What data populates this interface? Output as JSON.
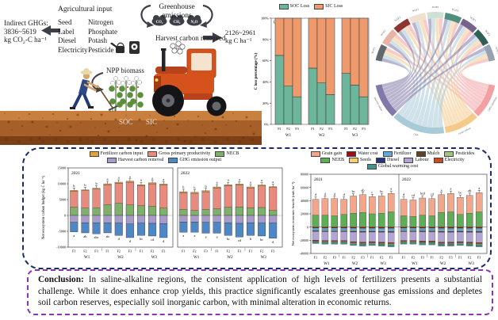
{
  "illustration": {
    "indirect_lines": [
      "Indirect GHGs:",
      "3836~5619",
      "kg CO₂-C ha⁻¹"
    ],
    "agricultural_input_title": "Agricultural input",
    "input_col1": [
      "Seed",
      "Label",
      "Diesel",
      "Electricity"
    ],
    "input_col2": [
      "Nitrogen",
      "Phosphate",
      "Potash",
      "Pesticide"
    ],
    "greenhouse_title": "Greenhouse emissions",
    "gas_badges": [
      "CO₂",
      "CH₄",
      "N₂O"
    ],
    "harvest_label": "Harvest carbon removed",
    "harvest_value_lines": [
      "2126~2961",
      "kg C ha⁻¹"
    ],
    "npp_label": "NPP biomass",
    "soil_labels": [
      "SOC",
      "SIC"
    ]
  },
  "chart_data": [
    {
      "id": "c-loss-stacked",
      "type": "bar",
      "stacked": true,
      "panel_label": "(a)",
      "ylabel": "C loss percentage (%)",
      "yticks": [
        "0%",
        "20%",
        "40%",
        "60%",
        "80%",
        "100%"
      ],
      "groups": [
        "W1",
        "W2",
        "W3"
      ],
      "categories": [
        "F1",
        "F2",
        "F3"
      ],
      "series": [
        {
          "name": "SOC Loss",
          "color": "#6db69b",
          "values": [
            65,
            36,
            26,
            53,
            39,
            28,
            48,
            37,
            26
          ]
        },
        {
          "name": "SIC Loss",
          "color": "#ef9a6d",
          "values": [
            35,
            64,
            74,
            47,
            61,
            72,
            52,
            63,
            74
          ]
        }
      ],
      "ylim": [
        0,
        100
      ]
    },
    {
      "id": "carbon-flow-chord",
      "type": "chord",
      "top_segments": [
        {
          "name": "W1F1",
          "color": "#63686e"
        },
        {
          "name": "W1F2",
          "color": "#e8b2a4"
        },
        {
          "name": "W1F3",
          "color": "#8f3430"
        },
        {
          "name": "W2F1",
          "color": "#f0e0cf"
        },
        {
          "name": "W2F2",
          "color": "#cfe0d6"
        },
        {
          "name": "W2F3",
          "color": "#4f8f7b"
        },
        {
          "name": "W3F1",
          "color": "#77628a"
        },
        {
          "name": "W3F2",
          "color": "#2f5f58"
        },
        {
          "name": "W3F3",
          "color": "#97a3ae"
        }
      ],
      "bottom_segments": [
        {
          "name": "Harvest carbon",
          "color": "#8379a8",
          "frac": 0.22
        },
        {
          "name": "GPP",
          "color": "#a9cbd8",
          "frac": 0.34
        },
        {
          "name": "Grain carbon",
          "color": "#f5c98a",
          "frac": 0.22
        },
        {
          "name": "GHG emissions",
          "color": "#f2a0a2",
          "frac": 0.22
        }
      ]
    },
    {
      "id": "necb-budget",
      "type": "bar",
      "ylabel": "Net ecosystem carbon budget (kg C ha⁻¹)",
      "yticks": [
        15000,
        10000,
        5000,
        0,
        -5000,
        -10000
      ],
      "ylim": [
        -10000,
        15000
      ],
      "groups": [
        "W1",
        "W2",
        "W3"
      ],
      "categories": [
        "F1",
        "F2",
        "F3"
      ],
      "legend": [
        {
          "label": "Fertilizer carbon input",
          "color": "#e0a43a"
        },
        {
          "label": "Gross primary productivity",
          "color": "#e88a7d"
        },
        {
          "label": "NECB",
          "color": "#7fb069"
        },
        {
          "label": "Harvest carbon removal",
          "color": "#a79cc9"
        },
        {
          "label": "GHG emission output",
          "color": "#4f86c6"
        }
      ],
      "fert_input": 300,
      "panels": [
        {
          "year": "2021",
          "gpp": [
            7600,
            7800,
            8300,
            9700,
            10200,
            10500,
            9400,
            10000,
            9600
          ],
          "necb": [
            2600,
            2300,
            2400,
            3400,
            3800,
            3300,
            3100,
            2900,
            2300
          ],
          "harvest": [
            -2200,
            -2300,
            -2300,
            -2300,
            -2400,
            -2700,
            -2400,
            -2500,
            -2600
          ],
          "ghg": [
            -5200,
            -5500,
            -5800,
            -5500,
            -6300,
            -7000,
            -6300,
            -6500,
            -7000
          ],
          "top_letters": [
            "b",
            "b",
            "b",
            "a",
            "a",
            "a",
            "a",
            "a",
            "a"
          ],
          "letters": [
            "a",
            "ab",
            "abc",
            "ab",
            "d",
            "d",
            "bc",
            "cd",
            "d"
          ]
        },
        {
          "year": "2022",
          "gpp": [
            7200,
            7000,
            7500,
            8700,
            9400,
            9600,
            8700,
            9300,
            8800
          ],
          "necb": [
            1900,
            1600,
            1900,
            2100,
            2600,
            2700,
            2400,
            2500,
            1600
          ],
          "harvest": [
            -2100,
            -2100,
            -2200,
            -2200,
            -2300,
            -2500,
            -2300,
            -2400,
            -2400
          ],
          "ghg": [
            -5300,
            -5300,
            -5600,
            -5600,
            -6300,
            -6800,
            -6300,
            -6500,
            -7200
          ],
          "top_letters": [
            "b",
            "b",
            "b",
            "a",
            "a",
            "a",
            "a",
            "a",
            "a"
          ],
          "letters": [
            "a",
            "a",
            "a",
            "a",
            "bc",
            "cd",
            "b",
            "bc",
            "d"
          ]
        }
      ]
    },
    {
      "id": "neeb-economic",
      "type": "bar",
      "ylabel": "Net ecosystem economic benefit (rmb ha⁻¹)",
      "yticks": [
        80000,
        60000,
        40000,
        20000,
        0,
        -20000,
        -40000
      ],
      "ylim": [
        -40000,
        80000
      ],
      "groups": [
        "W1",
        "W2",
        "W3"
      ],
      "categories": [
        "F1",
        "F2",
        "F3"
      ],
      "legend": [
        {
          "label": "Grain gain",
          "color": "#f2a68c"
        },
        {
          "label": "Water cost",
          "color": "#9c1016"
        },
        {
          "label": "Fertilizer",
          "color": "#62a8d8"
        },
        {
          "label": "Mulch",
          "color": "#5f4527"
        },
        {
          "label": "Pesticides",
          "color": "#a6c47e"
        },
        {
          "label": "NEEB",
          "color": "#5fae57"
        },
        {
          "label": "Seeds",
          "color": "#f5d06f"
        },
        {
          "label": "Diesel",
          "color": "#27357e"
        },
        {
          "label": "Labour",
          "color": "#b3a5d3"
        },
        {
          "label": "Electricity",
          "color": "#cc4a21"
        },
        {
          "label": "Global warming cost",
          "color": "#3f9489"
        }
      ],
      "cost_layers": [
        {
          "name": "Water cost",
          "color": "#9c1016",
          "frac": 0.06
        },
        {
          "name": "Fertilizer",
          "color": "#62a8d8",
          "frac": 0.13
        },
        {
          "name": "Seeds",
          "color": "#f5d06f",
          "frac": 0.04
        },
        {
          "name": "Diesel",
          "color": "#27357e",
          "frac": 0.04
        },
        {
          "name": "Labour",
          "color": "#b3a5d3",
          "frac": 0.52
        },
        {
          "name": "Mulch",
          "color": "#5f4527",
          "frac": 0.03
        },
        {
          "name": "Electricity",
          "color": "#cc4a21",
          "frac": 0.04
        },
        {
          "name": "Pesticides",
          "color": "#a6c47e",
          "frac": 0.04
        },
        {
          "name": "Global warming cost",
          "color": "#3f9489",
          "frac": 0.1
        }
      ],
      "panels": [
        {
          "year": "2021",
          "grain": [
            42000,
            43000,
            43000,
            42000,
            47000,
            49000,
            46000,
            47000,
            51000
          ],
          "neeb": [
            18000,
            18000,
            17000,
            19000,
            21000,
            22000,
            20000,
            21000,
            23000
          ],
          "neg": [
            25000,
            26000,
            26000,
            26000,
            28000,
            29000,
            28000,
            29000,
            30000
          ],
          "letters": [
            "d",
            "d",
            "d",
            "d",
            "bc",
            "ab",
            "c",
            "bc",
            "a"
          ]
        },
        {
          "year": "2022",
          "grain": [
            42000,
            41000,
            44000,
            43000,
            49000,
            51000,
            45000,
            48000,
            52000
          ],
          "neeb": [
            17000,
            16000,
            18000,
            17000,
            22000,
            23000,
            19000,
            21000,
            23000
          ],
          "neg": [
            26000,
            26000,
            27000,
            27000,
            29000,
            29000,
            28000,
            29000,
            30000
          ],
          "letters": [
            "d",
            "cd",
            "bcd",
            "cd",
            "a",
            "a",
            "bc",
            "ab",
            "a"
          ]
        }
      ]
    }
  ],
  "conclusion": {
    "label": "Conclusion:",
    "body": "In saline-alkaline regions, the consistent application of high levels of fertilizers presents a substantial challenge. While it does enhance crop yields, this practice significantly escalates greenhouse gas emissions and depletes soil carbon reserves, especially soil inorganic carbon, with minimal alteration in economic returns."
  }
}
